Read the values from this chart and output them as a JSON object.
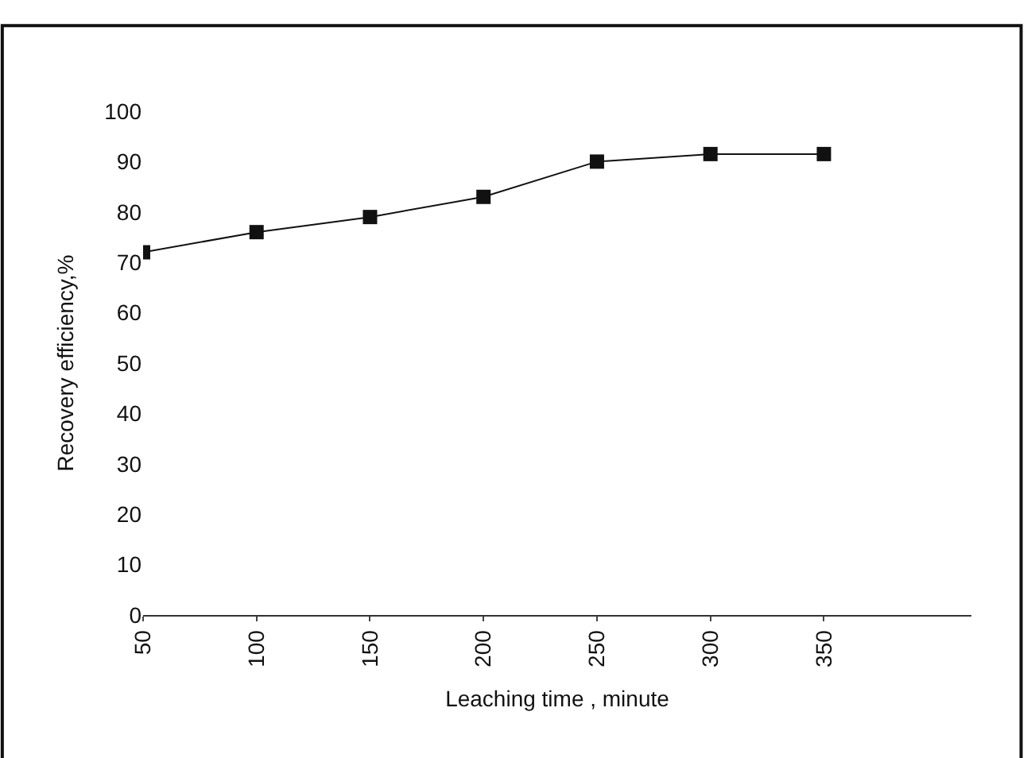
{
  "chart_data": {
    "type": "line",
    "xlabel": "Leaching time , minute",
    "ylabel": "Recovery efficiency,%",
    "x": [
      50,
      100,
      150,
      200,
      250,
      300,
      350
    ],
    "series": [
      {
        "color": "#111111",
        "values": [
          72,
          76,
          79,
          83,
          90,
          91.5,
          91.5
        ]
      }
    ],
    "xlim": [
      50,
      415
    ],
    "xticks": [
      50,
      100,
      150,
      200,
      250,
      300,
      350
    ],
    "ylim": [
      0,
      100
    ],
    "yticks": [
      0,
      10,
      20,
      30,
      40,
      50,
      60,
      70,
      80,
      90,
      100
    ],
    "marker": "square",
    "line_style": "solid",
    "legend": false
  }
}
